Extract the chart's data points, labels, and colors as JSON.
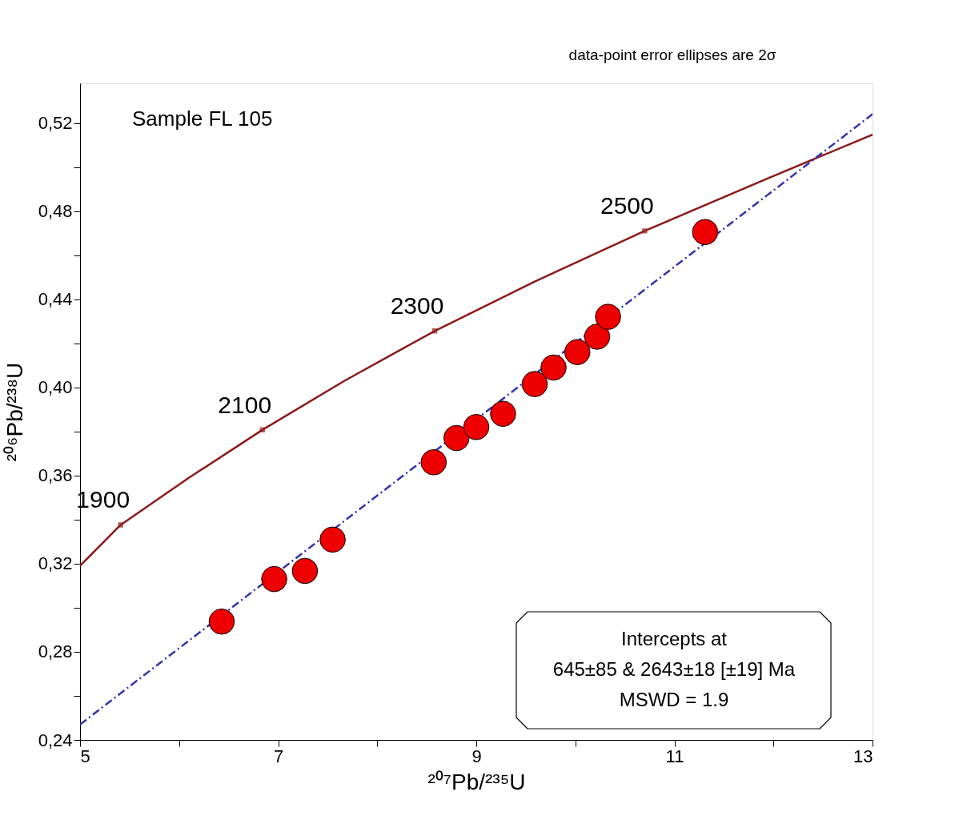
{
  "chart_data": {
    "type": "scatter",
    "xlabel": "²⁰⁷Pb/²³⁵U",
    "ylabel": "²⁰⁶Pb/²³⁸U",
    "xlim": [
      5,
      13
    ],
    "ylim": [
      0.24,
      0.538
    ],
    "xticks": [
      5,
      {
        "value": 6,
        "label": null
      },
      7,
      {
        "value": 8,
        "label": null
      },
      9,
      {
        "value": 10,
        "label": null
      },
      11,
      {
        "value": 12,
        "label": null
      },
      13
    ],
    "yticks": [
      {
        "value": 0.24,
        "label": "0,24"
      },
      {
        "value": 0.26,
        "label": null
      },
      {
        "value": 0.28,
        "label": "0,28"
      },
      {
        "value": 0.3,
        "label": null
      },
      {
        "value": 0.32,
        "label": "0,32"
      },
      {
        "value": 0.34,
        "label": null
      },
      {
        "value": 0.36,
        "label": "0,36"
      },
      {
        "value": 0.38,
        "label": null
      },
      {
        "value": 0.4,
        "label": "0,40"
      },
      {
        "value": 0.42,
        "label": null
      },
      {
        "value": 0.44,
        "label": "0,44"
      },
      {
        "value": 0.46,
        "label": null
      },
      {
        "value": 0.48,
        "label": "0,48"
      },
      {
        "value": 0.5,
        "label": null
      },
      {
        "value": 0.52,
        "label": "0,52"
      }
    ],
    "grid": false,
    "series": [
      {
        "type": "line",
        "color": "#8b1a1a",
        "line_style": "solid",
        "marker": "none",
        "x": [
          5,
          5.41,
          6.1,
          6.84,
          7.67,
          8.58,
          9.59,
          10.7,
          11.95,
          13
        ],
        "values": [
          0.319,
          0.3376,
          0.359,
          0.3807,
          0.403,
          0.4256,
          0.448,
          0.471,
          0.495,
          0.5147
        ]
      },
      {
        "type": "line",
        "color": "#3333aa",
        "line_style": "dashed",
        "marker": "none",
        "x": [
          5,
          13
        ],
        "values": [
          0.247,
          0.524
        ]
      },
      {
        "color": "#ee0000",
        "marker": "circle",
        "x": [
          6.43,
          6.96,
          7.27,
          7.55,
          8.57,
          8.8,
          9.0,
          9.27,
          9.59,
          9.78,
          10.02,
          10.22,
          10.33,
          11.31
        ],
        "values": [
          0.2937,
          0.313,
          0.3167,
          0.3309,
          0.366,
          0.377,
          0.382,
          0.388,
          0.4015,
          0.409,
          0.416,
          0.423,
          0.432,
          0.4705
        ]
      }
    ],
    "annotations": [
      "data-point error ellipses are 2σ",
      "Sample FL 105",
      {
        "text": "1900",
        "x": 5.41,
        "y": 0.3376
      },
      {
        "text": "2100",
        "x": 6.84,
        "y": 0.3807
      },
      {
        "text": "2300",
        "x": 8.58,
        "y": 0.4256
      },
      {
        "text": "2500",
        "x": 10.7,
        "y": 0.471
      },
      "Intercepts at",
      "645±85 & 2643±18   [±19]  Ma",
      "MSWD = 1.9"
    ]
  }
}
